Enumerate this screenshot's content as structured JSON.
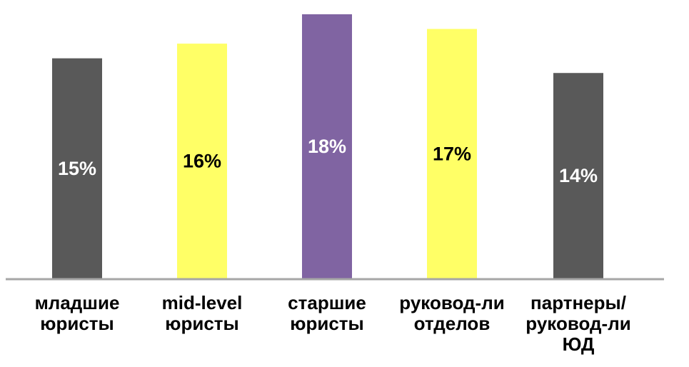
{
  "chart_data": {
    "type": "bar",
    "title": "",
    "xlabel": "",
    "ylabel": "",
    "ylim": [
      0,
      18
    ],
    "grid": false,
    "legend": false,
    "categories": [
      [
        "младшие",
        "юристы"
      ],
      [
        "mid-level",
        "юристы"
      ],
      [
        "старшие",
        "юристы"
      ],
      [
        "руковод-ли",
        "отделов"
      ],
      [
        "партнеры/",
        "руковод-ли",
        "ЮД"
      ]
    ],
    "values": [
      15,
      16,
      18,
      17,
      14
    ],
    "data_labels": [
      "15%",
      "16%",
      "18%",
      "17%",
      "14%"
    ],
    "bar_colors": [
      "#595959",
      "#FFFF66",
      "#8064A2",
      "#FFFF66",
      "#595959"
    ],
    "label_colors": [
      "#FFFFFF",
      "#000000",
      "#FFFFFF",
      "#000000",
      "#FFFFFF"
    ],
    "axis_color": "#A6A6A6"
  }
}
